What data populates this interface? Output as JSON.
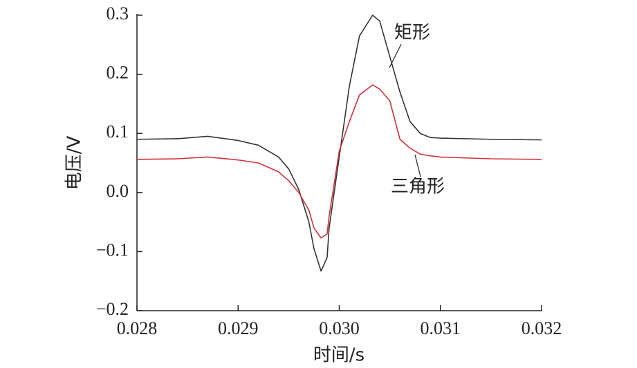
{
  "chart_data": {
    "type": "line",
    "x_label": "时间/s",
    "y_label": "电压/V",
    "x": [
      0.028,
      0.0284,
      0.0287,
      0.029,
      0.0292,
      0.0294,
      0.0295,
      0.0296,
      0.0297,
      0.02975,
      0.02982,
      0.02988,
      0.0299,
      0.03,
      0.0301,
      0.0302,
      0.03033,
      0.0304,
      0.0305,
      0.0306,
      0.0307,
      0.0308,
      0.0309,
      0.031,
      0.0315,
      0.032
    ],
    "series": [
      {
        "name": "矩形",
        "color": "#333333",
        "values": [
          0.09,
          0.091,
          0.095,
          0.088,
          0.08,
          0.06,
          0.04,
          0.005,
          -0.05,
          -0.095,
          -0.133,
          -0.11,
          -0.06,
          0.06,
          0.18,
          0.265,
          0.3,
          0.29,
          0.23,
          0.17,
          0.12,
          0.1,
          0.093,
          0.092,
          0.09,
          0.089
        ]
      },
      {
        "name": "三角形",
        "color": "#d0323c",
        "values": [
          0.056,
          0.057,
          0.06,
          0.055,
          0.05,
          0.035,
          0.02,
          0.0,
          -0.03,
          -0.06,
          -0.077,
          -0.07,
          -0.04,
          0.07,
          0.12,
          0.165,
          0.182,
          0.175,
          0.155,
          0.09,
          0.075,
          0.065,
          0.062,
          0.06,
          0.057,
          0.056
        ]
      }
    ],
    "xlim": [
      0.028,
      0.032
    ],
    "xticks": [
      0.028,
      0.029,
      {
        "value": 0.03,
        "label": "0.030"
      },
      0.031,
      0.032
    ],
    "ylim": [
      -0.2,
      0.3
    ],
    "yticks": [
      {
        "value": -0.2,
        "label": "−0.2"
      },
      {
        "value": -0.1,
        "label": "−0.1"
      },
      {
        "value": 0,
        "label": "0.0"
      },
      0.1,
      0.2,
      0.3
    ]
  }
}
